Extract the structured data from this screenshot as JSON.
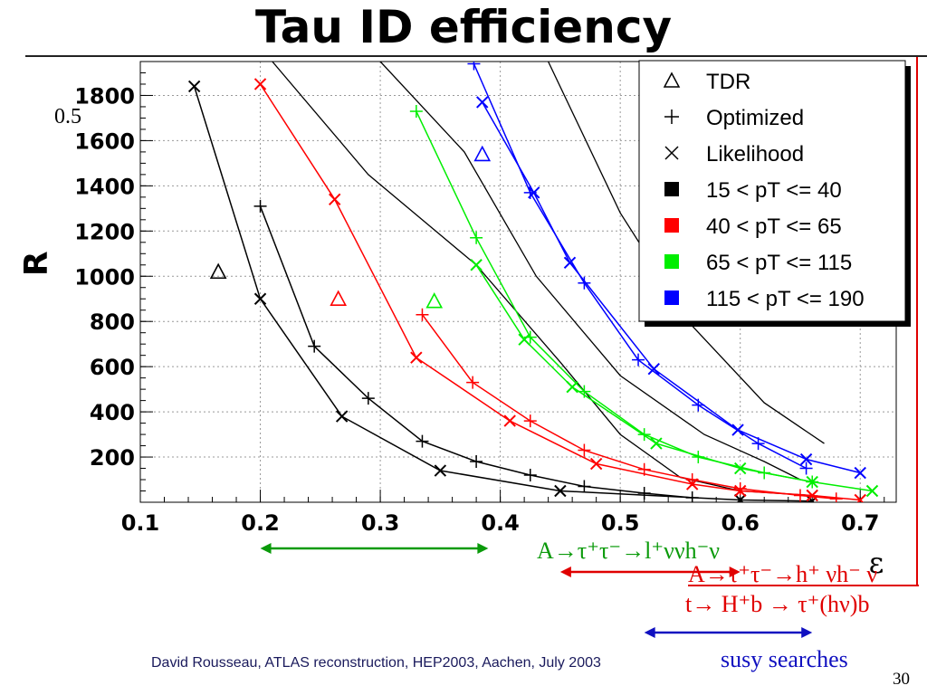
{
  "slide": {
    "title": "Tau ID efficiency",
    "footer": "David Rousseau, ATLAS reconstruction, HEP2003, Aachen,  July 2003",
    "page_number": "30",
    "stray_label": "0.5"
  },
  "annotations": [
    {
      "text": "A→τ⁺τ⁻→l⁺ννh⁻ν",
      "color": "#0a9a0a",
      "arrow_from": 0.2,
      "arrow_to": 0.39
    },
    {
      "text": "A→τ⁺τ⁻→h⁺ νh⁻ ν",
      "color": "#e00000",
      "arrow_from": 0.45,
      "arrow_to": 0.6
    },
    {
      "text": "t→ H⁺b → τ⁺(hν)b",
      "color": "#e00000",
      "arrow_from": null,
      "arrow_to": null
    },
    {
      "text": "susy searches",
      "color": "#1010c0",
      "arrow_from": 0.52,
      "arrow_to": 0.66
    }
  ],
  "chart_data": {
    "type": "line",
    "title": "",
    "xlabel": "ε",
    "ylabel": "R",
    "xlim": [
      0.1,
      0.73
    ],
    "ylim": [
      0,
      1950
    ],
    "x_ticks": [
      0.1,
      0.2,
      0.3,
      0.4,
      0.5,
      0.6,
      0.7
    ],
    "y_ticks": [
      200,
      400,
      600,
      800,
      1000,
      1200,
      1400,
      1600,
      1800
    ],
    "grid": true,
    "legend_position": "top-right",
    "legend": [
      {
        "label": "TDR",
        "kind": "marker",
        "marker": "triangle",
        "color": "#000000"
      },
      {
        "label": "Optimized",
        "kind": "marker",
        "marker": "plus",
        "color": "#000000"
      },
      {
        "label": "Likelihood",
        "kind": "marker",
        "marker": "cross",
        "color": "#000000"
      },
      {
        "label": "15 < pT <= 40",
        "kind": "box",
        "color": "#000000"
      },
      {
        "label": "40 < pT <= 65",
        "kind": "box",
        "color": "#ff0000"
      },
      {
        "label": "65 < pT <= 115",
        "kind": "box",
        "color": "#00ee00"
      },
      {
        "label": "115 < pT <= 190",
        "kind": "box",
        "color": "#0000ff"
      }
    ],
    "series": [
      {
        "color": "#000000",
        "marker": "cross",
        "points": [
          [
            0.145,
            1840
          ],
          [
            0.2,
            900
          ],
          [
            0.268,
            380
          ],
          [
            0.35,
            140
          ],
          [
            0.45,
            50
          ],
          [
            0.6,
            10
          ],
          [
            0.66,
            5
          ]
        ]
      },
      {
        "color": "#000000",
        "marker": "plus",
        "points": [
          [
            0.2,
            1310
          ],
          [
            0.245,
            690
          ],
          [
            0.29,
            460
          ],
          [
            0.335,
            270
          ],
          [
            0.38,
            180
          ],
          [
            0.425,
            120
          ],
          [
            0.47,
            70
          ],
          [
            0.52,
            40
          ],
          [
            0.56,
            20
          ]
        ]
      },
      {
        "color": "#ff0000",
        "marker": "cross",
        "points": [
          [
            0.2,
            1850
          ],
          [
            0.262,
            1340
          ],
          [
            0.33,
            640
          ],
          [
            0.408,
            360
          ],
          [
            0.48,
            170
          ],
          [
            0.56,
            80
          ],
          [
            0.6,
            50
          ],
          [
            0.66,
            30
          ],
          [
            0.7,
            10
          ]
        ]
      },
      {
        "color": "#ff0000",
        "marker": "plus",
        "points": [
          [
            0.335,
            830
          ],
          [
            0.377,
            530
          ],
          [
            0.425,
            360
          ],
          [
            0.47,
            230
          ],
          [
            0.52,
            145
          ],
          [
            0.56,
            100
          ],
          [
            0.6,
            60
          ],
          [
            0.65,
            30
          ],
          [
            0.68,
            15
          ]
        ]
      },
      {
        "color": "#00ee00",
        "marker": "cross",
        "points": [
          [
            0.38,
            1050
          ],
          [
            0.42,
            720
          ],
          [
            0.46,
            510
          ],
          [
            0.53,
            260
          ],
          [
            0.6,
            150
          ],
          [
            0.66,
            90
          ],
          [
            0.71,
            50
          ]
        ]
      },
      {
        "color": "#00ee00",
        "marker": "plus",
        "points": [
          [
            0.33,
            1730
          ],
          [
            0.38,
            1170
          ],
          [
            0.425,
            730
          ],
          [
            0.47,
            490
          ],
          [
            0.52,
            300
          ],
          [
            0.565,
            200
          ],
          [
            0.62,
            130
          ],
          [
            0.66,
            90
          ]
        ]
      },
      {
        "color": "#0000ff",
        "marker": "cross",
        "points": [
          [
            0.385,
            1770
          ],
          [
            0.428,
            1370
          ],
          [
            0.458,
            1060
          ],
          [
            0.528,
            590
          ],
          [
            0.598,
            320
          ],
          [
            0.655,
            190
          ],
          [
            0.7,
            130
          ]
        ]
      },
      {
        "color": "#0000ff",
        "marker": "plus",
        "points": [
          [
            0.378,
            1940
          ],
          [
            0.425,
            1370
          ],
          [
            0.47,
            970
          ],
          [
            0.515,
            630
          ],
          [
            0.565,
            430
          ],
          [
            0.615,
            260
          ],
          [
            0.655,
            150
          ]
        ]
      }
    ],
    "tdr_points": [
      {
        "x": 0.165,
        "y": 1020,
        "color": "#000000"
      },
      {
        "x": 0.265,
        "y": 900,
        "color": "#ff0000"
      },
      {
        "x": 0.345,
        "y": 890,
        "color": "#00ee00"
      },
      {
        "x": 0.385,
        "y": 1540,
        "color": "#0000ff"
      }
    ],
    "extra_black_curves": [
      [
        [
          0.21,
          1950
        ],
        [
          0.29,
          1450
        ],
        [
          0.38,
          1050
        ],
        [
          0.45,
          620
        ],
        [
          0.5,
          300
        ],
        [
          0.55,
          110
        ],
        [
          0.6,
          50
        ],
        [
          0.66,
          30
        ]
      ],
      [
        [
          0.3,
          1950
        ],
        [
          0.37,
          1550
        ],
        [
          0.43,
          1000
        ],
        [
          0.5,
          560
        ],
        [
          0.57,
          300
        ],
        [
          0.62,
          180
        ],
        [
          0.65,
          100
        ]
      ],
      [
        [
          0.44,
          1950
        ],
        [
          0.5,
          1280
        ],
        [
          0.56,
          780
        ],
        [
          0.62,
          440
        ],
        [
          0.67,
          260
        ]
      ]
    ]
  }
}
